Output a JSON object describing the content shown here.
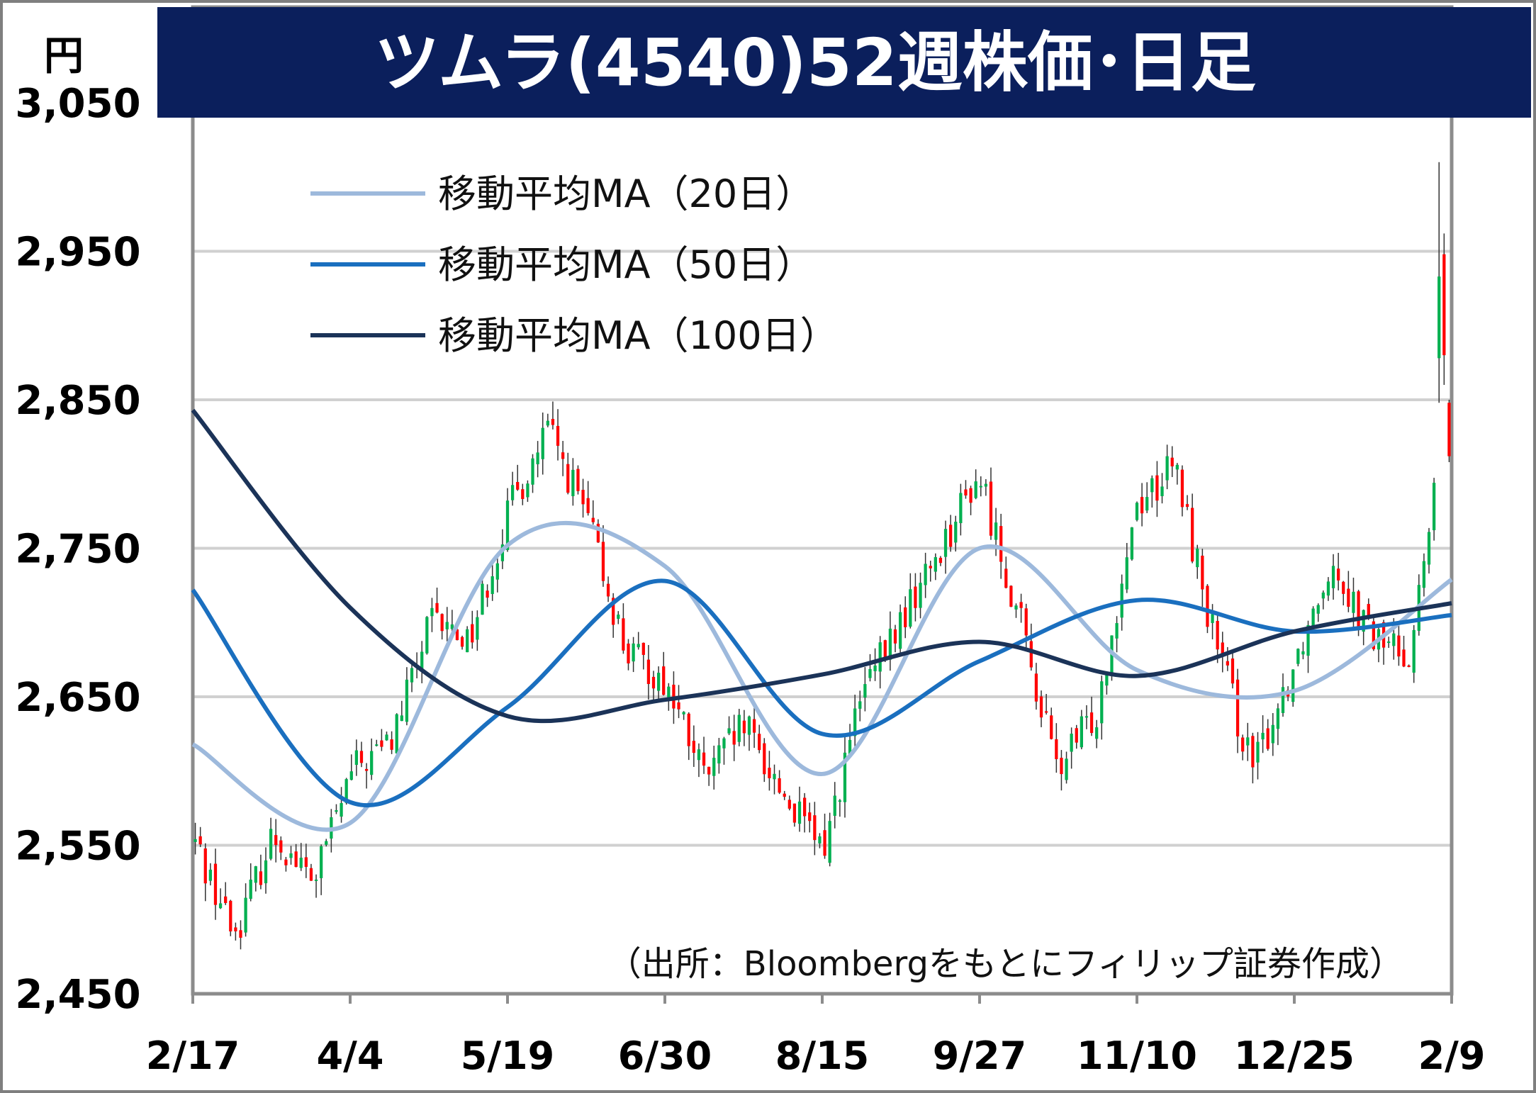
{
  "chart_data": {
    "type": "candlestick",
    "title": "ツムラ(4540)52週株価･日足",
    "ylabel": "円",
    "ylim": [
      2450,
      3050
    ],
    "yticks": [
      "2,450",
      "2,550",
      "2,650",
      "2,750",
      "2,850",
      "2,950",
      "3,050"
    ],
    "ytick_values": [
      2450,
      2550,
      2650,
      2750,
      2850,
      2950,
      3050
    ],
    "xticks": [
      "2/17",
      "4/4",
      "5/19",
      "6/30",
      "8/15",
      "9/27",
      "11/10",
      "12/25",
      "2/9"
    ],
    "grid": true,
    "legend_position": "top-left",
    "source": "（出所：Bloombergをもとにフィリップ証券作成）",
    "colors": {
      "title_bg": "#0b1f5c",
      "up": "#00b050",
      "down": "#ff0000",
      "ma20": "#9db9dc",
      "ma50": "#1a6fbf",
      "ma100": "#1b3358"
    },
    "series": [
      {
        "name": "移動平均MA（20日）",
        "x": [
          "2/17",
          "4/4",
          "5/19",
          "6/30",
          "8/15",
          "9/27",
          "11/10",
          "12/25",
          "2/9"
        ],
        "values": [
          2618,
          2565,
          2752,
          2738,
          2598,
          2750,
          2668,
          2654,
          2729
        ]
      },
      {
        "name": "移動平均MA（50日）",
        "x": [
          "2/17",
          "4/4",
          "5/19",
          "6/30",
          "8/15",
          "9/27",
          "11/10",
          "12/25",
          "2/9"
        ],
        "values": [
          2722,
          2579,
          2643,
          2728,
          2625,
          2674,
          2715,
          2694,
          2705
        ]
      },
      {
        "name": "移動平均MA（100日）",
        "x": [
          "2/17",
          "4/4",
          "5/19",
          "6/30",
          "8/15",
          "9/27",
          "11/10",
          "12/25",
          "2/9"
        ],
        "values": [
          2843,
          2710,
          2637,
          2648,
          2665,
          2687,
          2664,
          2694,
          2713
        ]
      }
    ],
    "price_path": {
      "x": [
        "2/17",
        "2/27",
        "3/11",
        "3/25",
        "4/4",
        "4/16",
        "4/28",
        "5/8",
        "5/19",
        "5/28",
        "6/6",
        "6/16",
        "6/30",
        "7/10",
        "7/22",
        "8/1",
        "8/15",
        "8/25",
        "9/5",
        "9/15",
        "9/27",
        "10/8",
        "10/20",
        "10/30",
        "11/10",
        "11/20",
        "12/2",
        "12/12",
        "12/25",
        "1/9",
        "1/20",
        "1/30",
        "2/9"
      ],
      "values": [
        2552,
        2490,
        2558,
        2525,
        2600,
        2620,
        2700,
        2690,
        2775,
        2830,
        2770,
        2680,
        2660,
        2595,
        2630,
        2585,
        2545,
        2650,
        2700,
        2750,
        2800,
        2705,
        2600,
        2640,
        2780,
        2805,
        2690,
        2600,
        2670,
        2745,
        2690,
        2680,
        2845
      ]
    }
  }
}
